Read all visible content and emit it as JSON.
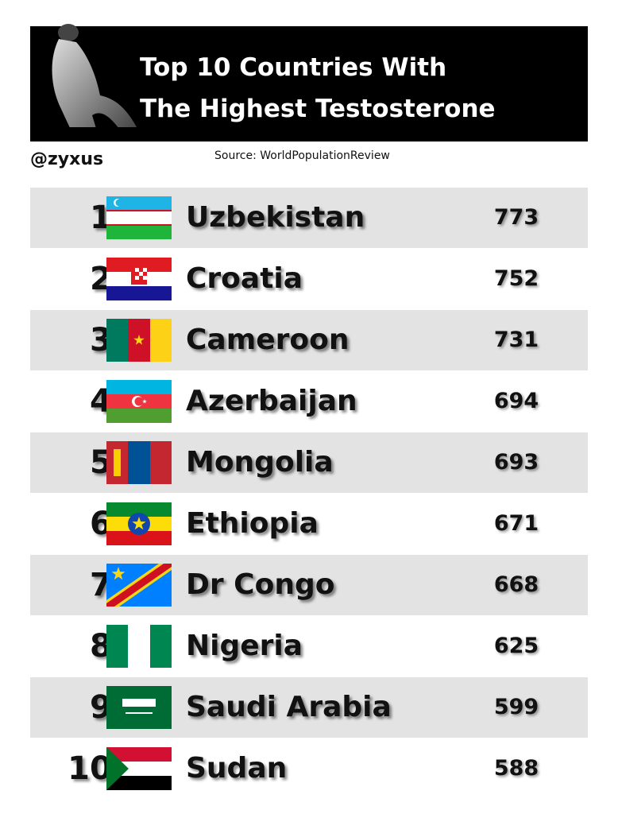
{
  "header": {
    "title": [
      "Top 10 Countries With",
      "The Highest Testosterone"
    ],
    "handle": "@zyxus",
    "source": "Source: WorldPopulationReview"
  },
  "table": {
    "rows": [
      [
        "1.",
        "Uzbekistan",
        773
      ],
      [
        "2.",
        "Croatia",
        752
      ],
      [
        "3.",
        "Cameroon",
        731
      ],
      [
        "4.",
        "Azerbaijan",
        694
      ],
      [
        "5.",
        "Mongolia",
        693
      ],
      [
        "6.",
        "Ethiopia",
        671
      ],
      [
        "7.",
        "Dr Congo",
        668
      ],
      [
        "8.",
        "Nigeria",
        625
      ],
      [
        "9.",
        "Saudi Arabia",
        599
      ],
      [
        "10.",
        "Sudan",
        588
      ]
    ]
  }
}
